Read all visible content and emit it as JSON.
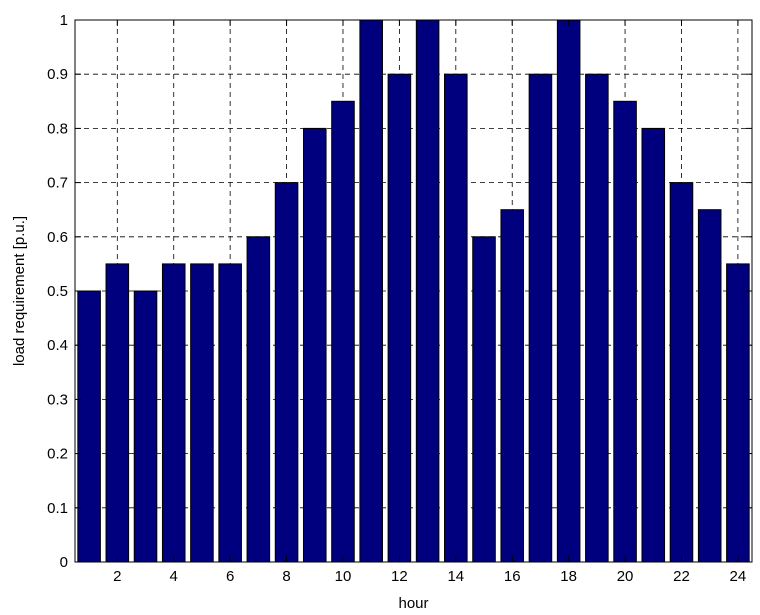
{
  "chart_data": {
    "type": "bar",
    "categories": [
      1,
      2,
      3,
      4,
      5,
      6,
      7,
      8,
      9,
      10,
      11,
      12,
      13,
      14,
      15,
      16,
      17,
      18,
      19,
      20,
      21,
      22,
      23,
      24
    ],
    "values": [
      0.5,
      0.55,
      0.5,
      0.55,
      0.55,
      0.55,
      0.6,
      0.7,
      0.8,
      0.85,
      1.0,
      0.9,
      1.0,
      0.9,
      0.6,
      0.65,
      0.9,
      1.0,
      0.9,
      0.85,
      0.8,
      0.7,
      0.65,
      0.55
    ],
    "xlabel": "hour",
    "ylabel": "load requirement [p.u.]",
    "xlim": [
      0.5,
      24.5
    ],
    "ylim": [
      0,
      1
    ],
    "xticks": [
      2,
      4,
      6,
      8,
      10,
      12,
      14,
      16,
      18,
      20,
      22,
      24
    ],
    "xtick_labels": [
      "2",
      "4",
      "6",
      "8",
      "10",
      "12",
      "14",
      "16",
      "18",
      "20",
      "22",
      "24"
    ],
    "yticks": [
      0,
      0.1,
      0.2,
      0.3,
      0.4,
      0.5,
      0.6,
      0.7,
      0.8,
      0.9,
      1
    ],
    "ytick_labels": [
      "0",
      "0.1",
      "0.2",
      "0.3",
      "0.4",
      "0.5",
      "0.6",
      "0.7",
      "0.8",
      "0.9",
      "1"
    ],
    "grid": true,
    "bar_color": "#00007f",
    "bar_edge_color": "#000000"
  }
}
